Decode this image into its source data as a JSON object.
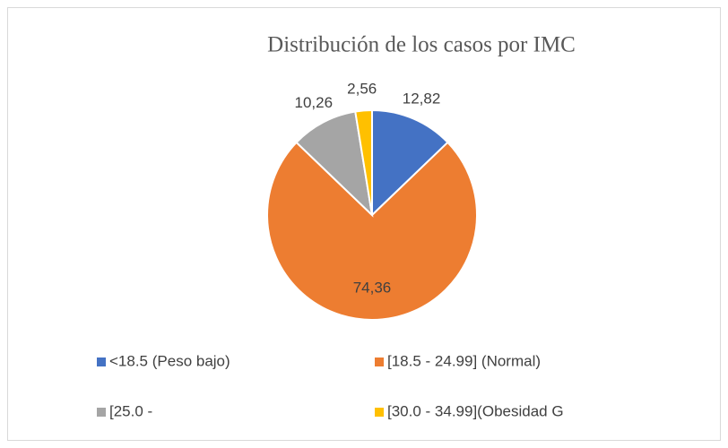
{
  "chart_data": {
    "type": "pie",
    "title": "Distribución de los casos por IMC",
    "categories": [
      "<18.5 (Peso bajo)",
      "[18.5 - 24.99] (Normal)",
      "[25.0 -",
      "[30.0 - 34.99](Obesidad G"
    ],
    "values": [
      12.82,
      74.36,
      10.26,
      2.56
    ],
    "value_labels": [
      "12,82",
      "74,36",
      "10,26",
      "2,56"
    ],
    "colors": [
      "#4472c4",
      "#ed7d31",
      "#a5a5a5",
      "#ffc000"
    ],
    "legend": "bottom"
  }
}
